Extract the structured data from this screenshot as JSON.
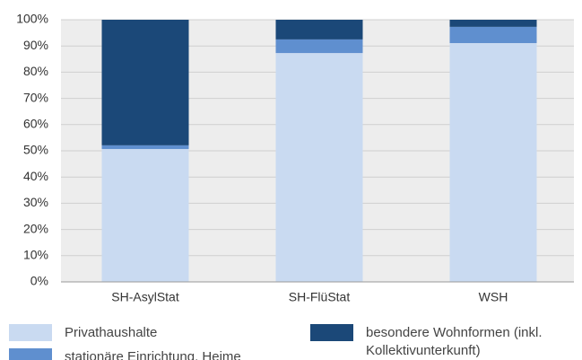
{
  "chart_data": {
    "type": "stacked_bar",
    "categories": [
      "SH-AsylStat",
      "SH-FlüStat",
      "WSH"
    ],
    "series": [
      {
        "name": "Privathaushalte",
        "color": "#c9daf1",
        "values": [
          50.7,
          87.3,
          91.1
        ]
      },
      {
        "name": "stationäre Einrichtung, Heime",
        "color": "#5f8fcf",
        "values": [
          1.4,
          5.2,
          6.2
        ]
      },
      {
        "name": "besondere Wohnformen (inkl. Kollektivunterkunft)",
        "color": "#1b4878",
        "values": [
          47.9,
          7.5,
          2.7
        ]
      }
    ],
    "ylim": [
      0,
      100
    ],
    "yticks": [
      {
        "value": 0,
        "label": "0%"
      },
      {
        "value": 10,
        "label": "10%"
      },
      {
        "value": 20,
        "label": "20%"
      },
      {
        "value": 30,
        "label": "30%"
      },
      {
        "value": 40,
        "label": "40%"
      },
      {
        "value": 50,
        "label": "50%"
      },
      {
        "value": 60,
        "label": "60%"
      },
      {
        "value": 70,
        "label": "70%"
      },
      {
        "value": 80,
        "label": "80%"
      },
      {
        "value": 90,
        "label": "90%"
      },
      {
        "value": 100,
        "label": "100%"
      }
    ],
    "grid": true
  }
}
